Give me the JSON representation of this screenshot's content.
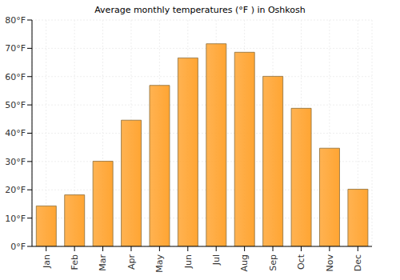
{
  "chart_data": {
    "type": "bar",
    "title": "Average monthly temperatures (°F ) in Oshkosh",
    "categories": [
      "Jan",
      "Feb",
      "Mar",
      "Apr",
      "May",
      "Jun",
      "Jul",
      "Aug",
      "Sep",
      "Oct",
      "Nov",
      "Dec"
    ],
    "values": [
      14.3,
      18.2,
      30.1,
      44.6,
      56.9,
      66.6,
      71.6,
      68.6,
      60.1,
      48.8,
      34.7,
      20.2
    ],
    "color": "#ffa533",
    "ylim": [
      0,
      80
    ],
    "yticks": [
      {
        "value": 0,
        "label": "0°F"
      },
      {
        "value": 10,
        "label": "10°F"
      },
      {
        "value": 20,
        "label": "20°F"
      },
      {
        "value": 30,
        "label": "30°F"
      },
      {
        "value": 40,
        "label": "40°F"
      },
      {
        "value": 50,
        "label": "50°F"
      },
      {
        "value": 60,
        "label": "60°F"
      },
      {
        "value": 70,
        "label": "70°F"
      },
      {
        "value": 80,
        "label": "80°F"
      }
    ],
    "grid": true
  }
}
